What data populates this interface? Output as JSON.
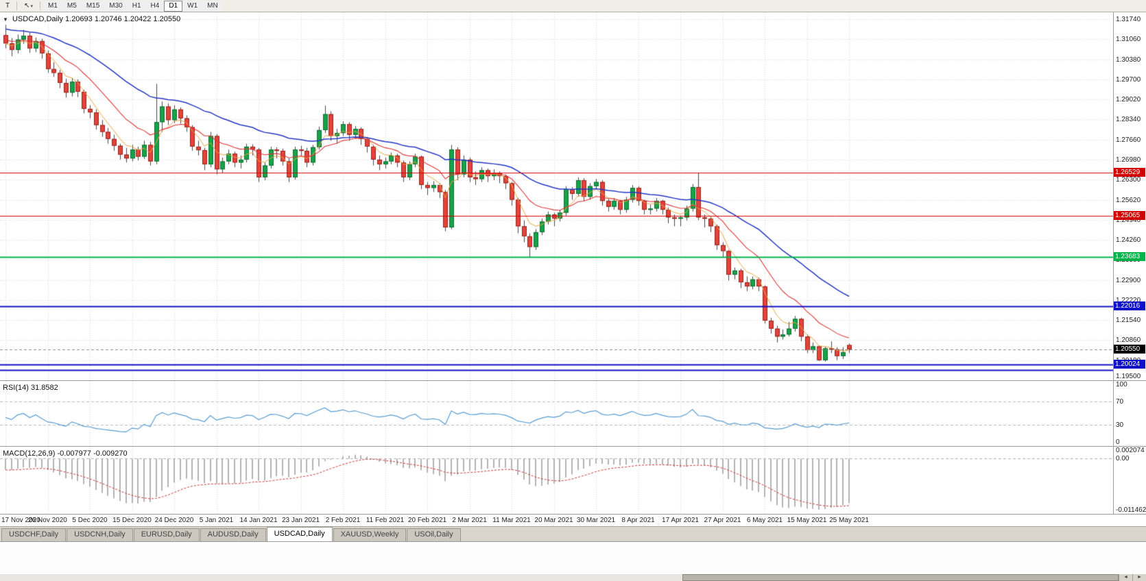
{
  "toolbar": {
    "buttons": [
      {
        "label": "T"
      },
      {
        "label": "↖",
        "caret": "▾"
      }
    ],
    "timeframes": [
      "M1",
      "M5",
      "M15",
      "M30",
      "H1",
      "H4",
      "D1",
      "W1",
      "MN"
    ],
    "active_timeframe": "D1"
  },
  "chart": {
    "collapse_icon": "▼",
    "symbol_label": "USDCAD,Daily",
    "ohlc_label": "1.20693 1.20746 1.20422 1.20550"
  },
  "chart_data": {
    "type": "candlestick",
    "symbol": "USDCAD",
    "timeframe": "Daily",
    "last_candle": {
      "open": 1.20693,
      "high": 1.20746,
      "low": 1.20422,
      "close": 1.2055
    },
    "y_axis": {
      "max": 1.3174,
      "min": 1.195,
      "labels": [
        "1.31740",
        "1.31060",
        "1.30380",
        "1.29700",
        "1.29020",
        "1.28340",
        "1.27660",
        "1.26980",
        "1.26300",
        "1.25620",
        "1.24940",
        "1.24260",
        "1.23580",
        "1.22900",
        "1.22220",
        "1.21540",
        "1.20860",
        "1.20180",
        "1.19500"
      ]
    },
    "x_ticks": [
      {
        "index": 0,
        "label": "17 Nov 2020"
      },
      {
        "index": 7,
        "label": "26 Nov 2020"
      },
      {
        "index": 14,
        "label": "5 Dec 2020"
      },
      {
        "index": 21,
        "label": "15 Dec 2020"
      },
      {
        "index": 28,
        "label": "24 Dec 2020"
      },
      {
        "index": 35,
        "label": "5 Jan 2021"
      },
      {
        "index": 42,
        "label": "14 Jan 2021"
      },
      {
        "index": 49,
        "label": "23 Jan 2021"
      },
      {
        "index": 56,
        "label": "2 Feb 2021"
      },
      {
        "index": 63,
        "label": "11 Feb 2021"
      },
      {
        "index": 70,
        "label": "20 Feb 2021"
      },
      {
        "index": 77,
        "label": "2 Mar 2021"
      },
      {
        "index": 84,
        "label": "11 Mar 2021"
      },
      {
        "index": 91,
        "label": "20 Mar 2021"
      },
      {
        "index": 98,
        "label": "30 Mar 2021"
      },
      {
        "index": 105,
        "label": "8 Apr 2021"
      },
      {
        "index": 112,
        "label": "17 Apr 2021"
      },
      {
        "index": 119,
        "label": "27 Apr 2021"
      },
      {
        "index": 126,
        "label": "6 May 2021"
      },
      {
        "index": 133,
        "label": "15 May 2021"
      },
      {
        "index": 140,
        "label": "25 May 2021"
      }
    ],
    "colors": {
      "up_fill": "#17a348",
      "up_border": "#0c6e31",
      "down_fill": "#e2433b",
      "down_border": "#99231c",
      "wick": "#444444",
      "grid": "#d6d6d6"
    },
    "moving_averages": [
      {
        "name": "ma-fast",
        "type": "ema",
        "period": 5,
        "color": "#e8a23c",
        "width": 1
      },
      {
        "name": "ma-mid",
        "type": "ema",
        "period": 13,
        "color": "#e03232",
        "width": 1.1
      },
      {
        "name": "ma-slow",
        "type": "ema",
        "period": 34,
        "color": "#2336c2",
        "width": 1.5
      }
    ],
    "hlines": [
      {
        "price": 1.26529,
        "color": "#d40000",
        "width": 1,
        "label": "1.26529"
      },
      {
        "price": 1.25065,
        "color": "#d40000",
        "width": 1,
        "label": "1.25065"
      },
      {
        "price": 1.23683,
        "color": "#00b34a",
        "width": 2,
        "label": "1.23683"
      },
      {
        "price": 1.22016,
        "color": "#1010c8",
        "width": 2,
        "label": "1.22016"
      },
      {
        "price": 1.20024,
        "color": "#1010c8",
        "width": 2,
        "label": "1.20024"
      },
      {
        "price": 1.1984,
        "color": "#1010c8",
        "width": 2,
        "label": ""
      }
    ],
    "current_price": {
      "value": 1.2055,
      "label": "1.20550",
      "label_bg": "#000000"
    },
    "prehistory_closes": [
      1.334,
      1.3355,
      1.333,
      1.331,
      1.3325,
      1.33,
      1.328,
      1.3295,
      1.331,
      1.3285,
      1.326,
      1.327,
      1.3245,
      1.3255,
      1.323,
      1.324,
      1.3215,
      1.323,
      1.3255,
      1.327,
      1.325,
      1.3225,
      1.324,
      1.326,
      1.3235,
      1.3215,
      1.3195,
      1.321,
      1.3185,
      1.317,
      1.319,
      1.3205,
      1.318,
      1.316,
      1.3175,
      1.315,
      1.3165,
      1.3185,
      1.316,
      1.314,
      1.3155,
      1.313,
      1.3145,
      1.312,
      1.3135,
      1.311,
      1.3125,
      1.3148,
      1.3122,
      1.3138,
      1.3112,
      1.3128,
      1.3105,
      1.3118,
      1.3095,
      1.3108,
      1.3085,
      1.3098,
      1.3075,
      1.3088
    ],
    "candles": [
      [
        1.312,
        1.3155,
        1.3075,
        1.3092
      ],
      [
        1.3092,
        1.311,
        1.3048,
        1.307
      ],
      [
        1.307,
        1.3122,
        1.3058,
        1.3105
      ],
      [
        1.3105,
        1.3138,
        1.309,
        1.3118
      ],
      [
        1.3118,
        1.3128,
        1.306,
        1.3075
      ],
      [
        1.3075,
        1.3112,
        1.3062,
        1.31
      ],
      [
        1.31,
        1.3108,
        1.304,
        1.3058
      ],
      [
        1.3058,
        1.3068,
        1.2992,
        1.3005
      ],
      [
        1.3005,
        1.3028,
        1.2978,
        1.2992
      ],
      [
        1.2992,
        1.3002,
        1.294,
        1.2958
      ],
      [
        1.2958,
        1.2972,
        1.2908,
        1.2925
      ],
      [
        1.2925,
        1.2975,
        1.2912,
        1.2962
      ],
      [
        1.2962,
        1.297,
        1.291,
        1.2928
      ],
      [
        1.2928,
        1.2935,
        1.2855,
        1.287
      ],
      [
        1.287,
        1.2882,
        1.2838,
        1.2858
      ],
      [
        1.2858,
        1.2868,
        1.28,
        1.2815
      ],
      [
        1.2815,
        1.2832,
        1.2775,
        1.2792
      ],
      [
        1.2792,
        1.2805,
        1.2752,
        1.2768
      ],
      [
        1.2768,
        1.2782,
        1.2728,
        1.2745
      ],
      [
        1.2745,
        1.2752,
        1.2698,
        1.2715
      ],
      [
        1.2715,
        1.2738,
        1.2688,
        1.2702
      ],
      [
        1.2702,
        1.2748,
        1.2692,
        1.2732
      ],
      [
        1.2732,
        1.2742,
        1.2695,
        1.2708
      ],
      [
        1.2708,
        1.2762,
        1.27,
        1.2748
      ],
      [
        1.2748,
        1.2758,
        1.2678,
        1.2692
      ],
      [
        1.2692,
        1.2955,
        1.2682,
        1.2825
      ],
      [
        1.2825,
        1.2895,
        1.2792,
        1.2878
      ],
      [
        1.2878,
        1.2888,
        1.2815,
        1.2832
      ],
      [
        1.2832,
        1.2882,
        1.2822,
        1.2868
      ],
      [
        1.2868,
        1.2875,
        1.282,
        1.2838
      ],
      [
        1.2838,
        1.2848,
        1.2792,
        1.2808
      ],
      [
        1.2808,
        1.2815,
        1.2728,
        1.2742
      ],
      [
        1.2742,
        1.2762,
        1.2712,
        1.273
      ],
      [
        1.273,
        1.2738,
        1.2662,
        1.2682
      ],
      [
        1.2682,
        1.2792,
        1.2672,
        1.2778
      ],
      [
        1.2778,
        1.2785,
        1.2648,
        1.2665
      ],
      [
        1.2665,
        1.2705,
        1.2652,
        1.2692
      ],
      [
        1.2692,
        1.2732,
        1.2682,
        1.2718
      ],
      [
        1.2718,
        1.2725,
        1.2672,
        1.2688
      ],
      [
        1.2688,
        1.2712,
        1.2668,
        1.2698
      ],
      [
        1.2698,
        1.2752,
        1.2688,
        1.2742
      ],
      [
        1.2742,
        1.275,
        1.2712,
        1.2732
      ],
      [
        1.2732,
        1.2738,
        1.2622,
        1.2638
      ],
      [
        1.2638,
        1.2688,
        1.2628,
        1.2678
      ],
      [
        1.2678,
        1.2742,
        1.2668,
        1.2732
      ],
      [
        1.2732,
        1.274,
        1.2702,
        1.2728
      ],
      [
        1.2728,
        1.2735,
        1.2678,
        1.2692
      ],
      [
        1.2692,
        1.2702,
        1.2622,
        1.2638
      ],
      [
        1.2638,
        1.2742,
        1.263,
        1.2732
      ],
      [
        1.2732,
        1.2745,
        1.2712,
        1.2728
      ],
      [
        1.2728,
        1.2738,
        1.2672,
        1.2688
      ],
      [
        1.2688,
        1.2748,
        1.2678,
        1.274
      ],
      [
        1.274,
        1.281,
        1.2732,
        1.2798
      ],
      [
        1.2798,
        1.2881,
        1.2788,
        1.2852
      ],
      [
        1.2852,
        1.2862,
        1.2762,
        1.2778
      ],
      [
        1.2778,
        1.2802,
        1.2752,
        1.2788
      ],
      [
        1.2788,
        1.2828,
        1.2778,
        1.2818
      ],
      [
        1.2818,
        1.2825,
        1.2762,
        1.2782
      ],
      [
        1.2782,
        1.2812,
        1.2768,
        1.2802
      ],
      [
        1.2802,
        1.2808,
        1.2748,
        1.2768
      ],
      [
        1.2768,
        1.2775,
        1.2722,
        1.2742
      ],
      [
        1.2742,
        1.2748,
        1.2678,
        1.2698
      ],
      [
        1.2698,
        1.2712,
        1.2662,
        1.2682
      ],
      [
        1.2682,
        1.2705,
        1.2668,
        1.2692
      ],
      [
        1.2692,
        1.2722,
        1.2682,
        1.2712
      ],
      [
        1.2712,
        1.2718,
        1.2672,
        1.2688
      ],
      [
        1.2688,
        1.2695,
        1.2622,
        1.2638
      ],
      [
        1.2638,
        1.2692,
        1.2628,
        1.2682
      ],
      [
        1.2682,
        1.2718,
        1.2672,
        1.2708
      ],
      [
        1.2708,
        1.2712,
        1.2598,
        1.2612
      ],
      [
        1.2612,
        1.2622,
        1.2578,
        1.2602
      ],
      [
        1.2602,
        1.2625,
        1.2588,
        1.2612
      ],
      [
        1.2612,
        1.2618,
        1.2568,
        1.2588
      ],
      [
        1.2588,
        1.2595,
        1.2455,
        1.2468
      ],
      [
        1.2468,
        1.2748,
        1.2462,
        1.2732
      ],
      [
        1.2732,
        1.274,
        1.2628,
        1.2648
      ],
      [
        1.2648,
        1.2712,
        1.2638,
        1.2698
      ],
      [
        1.2698,
        1.2705,
        1.2622,
        1.2638
      ],
      [
        1.2638,
        1.2658,
        1.2612,
        1.2632
      ],
      [
        1.2632,
        1.2672,
        1.2622,
        1.2662
      ],
      [
        1.2662,
        1.2668,
        1.2622,
        1.2642
      ],
      [
        1.2642,
        1.2665,
        1.2628,
        1.2652
      ],
      [
        1.2652,
        1.2658,
        1.2618,
        1.2642
      ],
      [
        1.2642,
        1.2648,
        1.2598,
        1.2618
      ],
      [
        1.2618,
        1.2622,
        1.2542,
        1.2562
      ],
      [
        1.2562,
        1.2568,
        1.2448,
        1.2472
      ],
      [
        1.2472,
        1.2492,
        1.2418,
        1.2438
      ],
      [
        1.2438,
        1.2448,
        1.2366,
        1.2402
      ],
      [
        1.2402,
        1.2462,
        1.2392,
        1.2452
      ],
      [
        1.2452,
        1.2498,
        1.2442,
        1.2488
      ],
      [
        1.2488,
        1.2522,
        1.2478,
        1.2512
      ],
      [
        1.2512,
        1.2518,
        1.2472,
        1.2498
      ],
      [
        1.2498,
        1.2528,
        1.2488,
        1.2518
      ],
      [
        1.2518,
        1.2608,
        1.2508,
        1.2598
      ],
      [
        1.2598,
        1.2605,
        1.2562,
        1.2582
      ],
      [
        1.2582,
        1.2638,
        1.2572,
        1.2628
      ],
      [
        1.2628,
        1.2635,
        1.2558,
        1.2572
      ],
      [
        1.2572,
        1.2618,
        1.2562,
        1.2608
      ],
      [
        1.2608,
        1.2632,
        1.2598,
        1.2622
      ],
      [
        1.2622,
        1.2628,
        1.2542,
        1.2558
      ],
      [
        1.2558,
        1.2565,
        1.2522,
        1.2538
      ],
      [
        1.2538,
        1.2568,
        1.2528,
        1.2558
      ],
      [
        1.2558,
        1.2562,
        1.2512,
        1.2528
      ],
      [
        1.2528,
        1.2572,
        1.2518,
        1.2562
      ],
      [
        1.2562,
        1.2612,
        1.2552,
        1.2602
      ],
      [
        1.2602,
        1.2608,
        1.2542,
        1.2558
      ],
      [
        1.2558,
        1.2562,
        1.2512,
        1.2528
      ],
      [
        1.2528,
        1.2545,
        1.2512,
        1.2532
      ],
      [
        1.2532,
        1.2568,
        1.2522,
        1.2558
      ],
      [
        1.2558,
        1.2562,
        1.2512,
        1.2528
      ],
      [
        1.2528,
        1.2535,
        1.2482,
        1.2502
      ],
      [
        1.2502,
        1.2512,
        1.2472,
        1.2498
      ],
      [
        1.2498,
        1.2508,
        1.2472,
        1.2502
      ],
      [
        1.2502,
        1.2542,
        1.2492,
        1.2532
      ],
      [
        1.2532,
        1.2615,
        1.2522,
        1.2605
      ],
      [
        1.2605,
        1.2654,
        1.2493,
        1.2502
      ],
      [
        1.2502,
        1.2512,
        1.2468,
        1.2498
      ],
      [
        1.2498,
        1.2505,
        1.2452,
        1.2472
      ],
      [
        1.2472,
        1.2478,
        1.2392,
        1.2408
      ],
      [
        1.2408,
        1.2418,
        1.2368,
        1.2388
      ],
      [
        1.2388,
        1.2392,
        1.2288,
        1.2308
      ],
      [
        1.2308,
        1.2332,
        1.2292,
        1.2322
      ],
      [
        1.2322,
        1.2328,
        1.2262,
        1.2282
      ],
      [
        1.2282,
        1.2302,
        1.2252,
        1.2268
      ],
      [
        1.2268,
        1.2302,
        1.2258,
        1.2292
      ],
      [
        1.2292,
        1.2298,
        1.2252,
        1.2268
      ],
      [
        1.2268,
        1.2272,
        1.2142,
        1.2152
      ],
      [
        1.2152,
        1.2162,
        1.2108,
        1.2125
      ],
      [
        1.2125,
        1.2135,
        1.2078,
        1.2098
      ],
      [
        1.2098,
        1.2122,
        1.2088,
        1.2105
      ],
      [
        1.2105,
        1.2148,
        1.2098,
        1.2125
      ],
      [
        1.2125,
        1.2168,
        1.2115,
        1.2158
      ],
      [
        1.2158,
        1.2162,
        1.2082,
        1.2098
      ],
      [
        1.2098,
        1.2105,
        1.2042,
        1.2052
      ],
      [
        1.2052,
        1.2078,
        1.2042,
        1.2065
      ],
      [
        1.2065,
        1.2068,
        1.2015,
        1.2018
      ],
      [
        1.2018,
        1.2065,
        1.2013,
        1.2058
      ],
      [
        1.2058,
        1.2082,
        1.2042,
        1.2055
      ],
      [
        1.2055,
        1.2062,
        1.2018,
        1.2032
      ],
      [
        1.2032,
        1.2062,
        1.2022,
        1.2045
      ],
      [
        1.20693,
        1.20746,
        1.20422,
        1.2055
      ]
    ]
  },
  "rsi": {
    "label": "RSI(14) 31.8582",
    "period": 14,
    "value": 31.8582,
    "line_color": "#569bd2",
    "levels": [
      {
        "value": 100,
        "label": "100"
      },
      {
        "value": 70,
        "label": "70"
      },
      {
        "value": 30,
        "label": "30"
      },
      {
        "value": 0,
        "label": "0"
      }
    ],
    "dashed_levels": [
      70,
      30
    ]
  },
  "macd": {
    "label": "MACD(12,26,9) -0.007977 -0.009270",
    "fast": 12,
    "slow": 26,
    "signal": 9,
    "macd_value": -0.007977,
    "signal_value": -0.00927,
    "scale_max": 0.002074,
    "scale_min": -0.011462,
    "axis_labels": [
      {
        "value": 0.002074,
        "label": "0.002074"
      },
      {
        "value": 0,
        "label": "0.00"
      },
      {
        "value": -0.011462,
        "label": "-0.011462"
      }
    ],
    "histogram_color": "#b3b3b3",
    "signal_color": "#cc3333"
  },
  "tabs": {
    "items": [
      "USDCHF,Daily",
      "USDCNH,Daily",
      "EURUSD,Daily",
      "AUDUSD,Daily",
      "USDCAD,Daily",
      "XAUUSD,Weekly",
      "USOil,Daily"
    ],
    "active": "USDCAD,Daily"
  },
  "scrollbar": {
    "left_arrow": "◄",
    "right_arrow": "►"
  }
}
